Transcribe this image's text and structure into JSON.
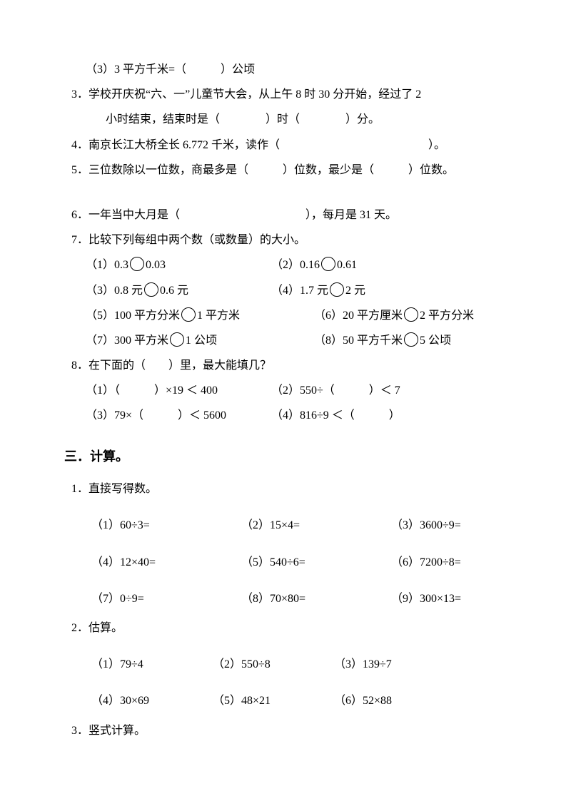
{
  "q2_3": "（3）3 平方千米=（　　　）公顷",
  "q3_a": "3．学校开庆祝“六、一”儿童节大会，从上午 8 时 30 分开始，经过了 2",
  "q3_b": "小时结束，结束时是（　　　　）时（　　　　）分。",
  "q4": "4．南京长江大桥全长 6.772 千米，读作（　　　　　　　　　　　　　）。",
  "q5": "5．三位数除以一位数，商最多是（　　　）位数，最少是（　　　）位数。",
  "q6": "6．一年当中大月是（　　　　　　　　　　　），每月是 31 天。",
  "q7": "7．比较下列每组中两个数（或数量）的大小。",
  "q7_1a": "（1）0.3",
  "q7_1b": "0.03",
  "q7_2a": "（2）0.16",
  "q7_2b": "0.61",
  "q7_3a": "（3）0.8 元",
  "q7_3b": "0.6 元",
  "q7_4a": "（4）1.7 元",
  "q7_4b": "2 元",
  "q7_5a": "（5）100 平方分米",
  "q7_5b": "1 平方米",
  "q7_6a": "（6）20 平方厘米",
  "q7_6b": "2 平方分米",
  "q7_7a": "（7）300 平方米",
  "q7_7b": "1 公顷",
  "q7_8a": "（8）50 平方千米",
  "q7_8b": "5 公顷",
  "q8": "8．在下面的（　　）里，最大能填几？",
  "q8_1": "（1）（　　　）×19 ＜ 400",
  "q8_2": "（2）550÷（　　　）＜ 7",
  "q8_3": "（3）79×（　　　）＜ 5600",
  "q8_4": "（4）816÷9 ＜（　　　）",
  "section3": "三．计算。",
  "s3_1": "1．直接写得数。",
  "s3_1_1": "（1）60÷3=",
  "s3_1_2": "（2）15×4=",
  "s3_1_3": "（3）3600÷9=",
  "s3_1_4": "（4）12×40=",
  "s3_1_5": "（5）540÷6=",
  "s3_1_6": "（6）7200÷8=",
  "s3_1_7": "（7）0÷9=",
  "s3_1_8": "（8）70×80=",
  "s3_1_9": "（9）300×13=",
  "s3_2": "2．估算。",
  "s3_2_1": "（1）79÷4",
  "s3_2_2": "（2）550÷8",
  "s3_2_3": "（3）139÷7",
  "s3_2_4": "（4）30×69",
  "s3_2_5": "（5）48×21",
  "s3_2_6": "（6）52×88",
  "s3_3": "3．竖式计算。"
}
